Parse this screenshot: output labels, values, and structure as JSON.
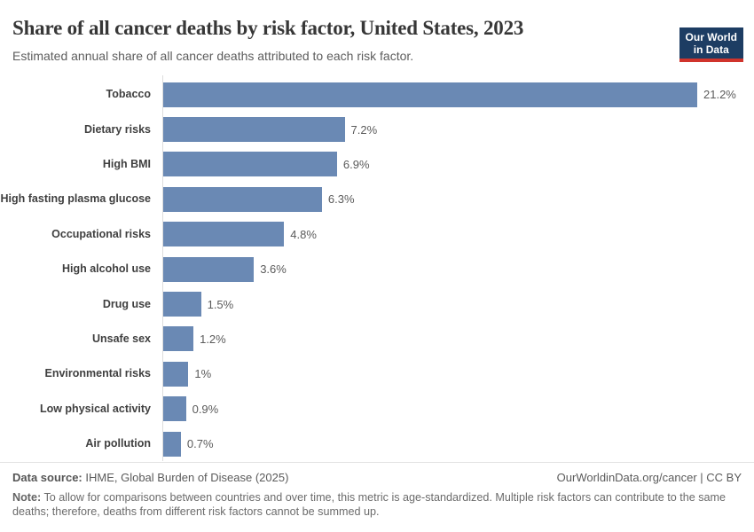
{
  "header": {
    "title": "Share of all cancer deaths by risk factor, United States, 2023",
    "subtitle": "Estimated annual share of all cancer deaths attributed to each risk factor.",
    "logo": {
      "line1": "Our World",
      "line2": "in Data"
    }
  },
  "chart_data": {
    "type": "bar",
    "orientation": "horizontal",
    "title": "Share of all cancer deaths by risk factor, United States, 2023",
    "categories": [
      "Tobacco",
      "Dietary risks",
      "High BMI",
      "High fasting plasma glucose",
      "Occupational risks",
      "High alcohol use",
      "Drug use",
      "Unsafe sex",
      "Environmental risks",
      "Low physical activity",
      "Air pollution"
    ],
    "values": [
      21.2,
      7.2,
      6.9,
      6.3,
      4.8,
      3.6,
      1.5,
      1.2,
      1.0,
      0.9,
      0.7
    ],
    "value_labels": [
      "21.2%",
      "7.2%",
      "6.9%",
      "6.3%",
      "4.8%",
      "3.6%",
      "1.5%",
      "1.2%",
      "1%",
      "0.9%",
      "0.7%"
    ],
    "xlabel": "",
    "ylabel": "",
    "xlim": [
      0,
      21.2
    ],
    "grid": false,
    "legend": false,
    "bar_color": "#6a89b4",
    "axis_color": "#dcdcdc"
  },
  "footer": {
    "datasource_label": "Data source:",
    "datasource_text": "IHME, Global Burden of Disease (2025)",
    "attribution": "OurWorldinData.org/cancer | CC BY",
    "note_label": "Note:",
    "note_text": "To allow for comparisons between countries and over time, this metric is age-standardized. Multiple risk factors can contribute to the same deaths; therefore, deaths from different risk factors cannot be summed up."
  },
  "colors": {
    "bar": "#6a89b4",
    "logo_bg": "#1d3d63",
    "logo_underline": "#d0342c",
    "title_text": "#373737",
    "axis_line": "#dcdcdc"
  }
}
